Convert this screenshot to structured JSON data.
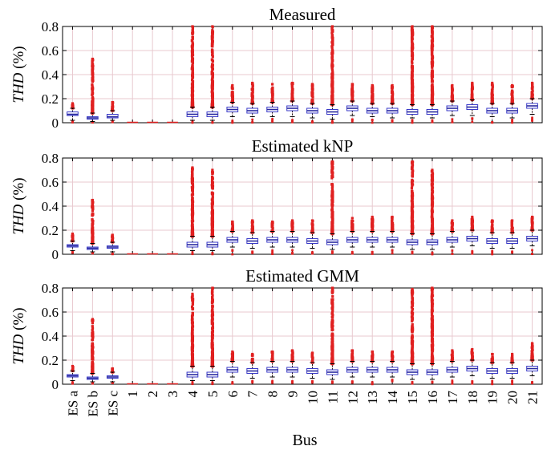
{
  "chart_data": [
    {
      "type": "box",
      "title": "Measured",
      "ylabel_var": "THD",
      "ylabel_unit": " (%)",
      "ylim": [
        0,
        0.8
      ],
      "yticks": [
        "0",
        "0.2",
        "0.4",
        "0.6",
        "0.8"
      ],
      "grid": true,
      "categories": [
        "ES a",
        "ES b",
        "ES c",
        "1",
        "2",
        "3",
        "4",
        "5",
        "6",
        "7",
        "8",
        "9",
        "10",
        "11",
        "12",
        "13",
        "14",
        "15",
        "16",
        "17",
        "18",
        "19",
        "20",
        "21"
      ],
      "median": [
        0.07,
        0.04,
        0.05,
        0,
        0,
        0,
        0.07,
        0.07,
        0.11,
        0.1,
        0.11,
        0.12,
        0.1,
        0.09,
        0.12,
        0.1,
        0.1,
        0.09,
        0.09,
        0.12,
        0.13,
        0.1,
        0.1,
        0.14
      ],
      "q1": [
        0.06,
        0.03,
        0.04,
        0,
        0,
        0,
        0.05,
        0.05,
        0.09,
        0.08,
        0.09,
        0.1,
        0.08,
        0.07,
        0.1,
        0.08,
        0.08,
        0.07,
        0.07,
        0.1,
        0.11,
        0.08,
        0.08,
        0.12
      ],
      "q3": [
        0.09,
        0.05,
        0.07,
        0,
        0,
        0,
        0.09,
        0.09,
        0.13,
        0.12,
        0.13,
        0.14,
        0.12,
        0.11,
        0.14,
        0.12,
        0.12,
        0.11,
        0.11,
        0.14,
        0.15,
        0.12,
        0.12,
        0.16
      ],
      "whisker_low": [
        0.02,
        0.01,
        0.02,
        0,
        0,
        0,
        0.02,
        0.02,
        0.05,
        0.05,
        0.05,
        0.05,
        0.04,
        0.03,
        0.06,
        0.05,
        0.04,
        0.04,
        0.04,
        0.06,
        0.06,
        0.05,
        0.04,
        0.07
      ],
      "whisker_high": [
        0.12,
        0.08,
        0.1,
        0,
        0,
        0,
        0.13,
        0.13,
        0.17,
        0.16,
        0.17,
        0.18,
        0.16,
        0.15,
        0.18,
        0.16,
        0.16,
        0.15,
        0.15,
        0.18,
        0.19,
        0.16,
        0.16,
        0.2
      ],
      "outlier_max": [
        0.16,
        0.53,
        0.17,
        0,
        0,
        0,
        0.8,
        0.8,
        0.31,
        0.33,
        0.32,
        0.33,
        0.32,
        0.8,
        0.32,
        0.31,
        0.31,
        0.8,
        0.8,
        0.31,
        0.33,
        0.33,
        0.31,
        0.33
      ]
    },
    {
      "type": "box",
      "title": "Estimated kNP",
      "ylabel_var": "THD",
      "ylabel_unit": " (%)",
      "ylim": [
        0,
        0.8
      ],
      "yticks": [
        "0",
        "0.2",
        "0.4",
        "0.6",
        "0.8"
      ],
      "grid": true,
      "categories": [
        "ES a",
        "ES b",
        "ES c",
        "1",
        "2",
        "3",
        "4",
        "5",
        "6",
        "7",
        "8",
        "9",
        "10",
        "11",
        "12",
        "13",
        "14",
        "15",
        "16",
        "17",
        "18",
        "19",
        "20",
        "21"
      ],
      "median": [
        0.07,
        0.05,
        0.06,
        0,
        0,
        0,
        0.08,
        0.08,
        0.12,
        0.11,
        0.12,
        0.12,
        0.11,
        0.1,
        0.12,
        0.12,
        0.12,
        0.1,
        0.1,
        0.12,
        0.13,
        0.11,
        0.11,
        0.13
      ],
      "q1": [
        0.06,
        0.04,
        0.05,
        0,
        0,
        0,
        0.06,
        0.06,
        0.1,
        0.09,
        0.1,
        0.1,
        0.09,
        0.08,
        0.1,
        0.1,
        0.1,
        0.08,
        0.08,
        0.1,
        0.11,
        0.09,
        0.09,
        0.11
      ],
      "q3": [
        0.08,
        0.06,
        0.07,
        0,
        0,
        0,
        0.1,
        0.1,
        0.14,
        0.13,
        0.14,
        0.14,
        0.13,
        0.12,
        0.14,
        0.14,
        0.14,
        0.12,
        0.12,
        0.14,
        0.15,
        0.13,
        0.13,
        0.15
      ],
      "whisker_low": [
        0.03,
        0.02,
        0.02,
        0,
        0,
        0,
        0.03,
        0.03,
        0.06,
        0.05,
        0.06,
        0.06,
        0.05,
        0.04,
        0.06,
        0.06,
        0.06,
        0.04,
        0.04,
        0.06,
        0.07,
        0.05,
        0.05,
        0.07
      ],
      "whisker_high": [
        0.11,
        0.09,
        0.1,
        0,
        0,
        0,
        0.15,
        0.15,
        0.19,
        0.18,
        0.19,
        0.19,
        0.18,
        0.17,
        0.19,
        0.19,
        0.19,
        0.17,
        0.17,
        0.19,
        0.2,
        0.18,
        0.18,
        0.2
      ],
      "outlier_max": [
        0.17,
        0.45,
        0.16,
        0,
        0,
        0,
        0.72,
        0.7,
        0.27,
        0.28,
        0.27,
        0.28,
        0.28,
        0.77,
        0.3,
        0.31,
        0.31,
        0.77,
        0.7,
        0.28,
        0.31,
        0.28,
        0.28,
        0.31
      ]
    },
    {
      "type": "box",
      "title": "Estimated GMM",
      "ylabel_var": "THD",
      "ylabel_unit": " (%)",
      "ylim": [
        0,
        0.8
      ],
      "yticks": [
        "0",
        "0.2",
        "0.4",
        "0.6",
        "0.8"
      ],
      "grid": true,
      "categories": [
        "ES a",
        "ES b",
        "ES c",
        "1",
        "2",
        "3",
        "4",
        "5",
        "6",
        "7",
        "8",
        "9",
        "10",
        "11",
        "12",
        "13",
        "14",
        "15",
        "16",
        "17",
        "18",
        "19",
        "20",
        "21"
      ],
      "median": [
        0.07,
        0.05,
        0.06,
        0,
        0,
        0,
        0.08,
        0.08,
        0.12,
        0.11,
        0.12,
        0.12,
        0.11,
        0.1,
        0.12,
        0.12,
        0.12,
        0.1,
        0.1,
        0.12,
        0.13,
        0.11,
        0.11,
        0.13
      ],
      "q1": [
        0.06,
        0.04,
        0.05,
        0,
        0,
        0,
        0.06,
        0.06,
        0.1,
        0.09,
        0.1,
        0.1,
        0.09,
        0.08,
        0.1,
        0.1,
        0.1,
        0.08,
        0.08,
        0.1,
        0.11,
        0.09,
        0.09,
        0.11
      ],
      "q3": [
        0.08,
        0.06,
        0.07,
        0,
        0,
        0,
        0.1,
        0.1,
        0.14,
        0.13,
        0.14,
        0.14,
        0.13,
        0.12,
        0.14,
        0.14,
        0.14,
        0.12,
        0.12,
        0.14,
        0.15,
        0.13,
        0.13,
        0.15
      ],
      "whisker_low": [
        0.03,
        0.02,
        0.02,
        0,
        0,
        0,
        0.03,
        0.03,
        0.06,
        0.05,
        0.06,
        0.06,
        0.05,
        0.04,
        0.06,
        0.06,
        0.06,
        0.04,
        0.04,
        0.06,
        0.07,
        0.05,
        0.05,
        0.07
      ],
      "whisker_high": [
        0.11,
        0.09,
        0.1,
        0,
        0,
        0,
        0.15,
        0.15,
        0.19,
        0.18,
        0.19,
        0.19,
        0.18,
        0.17,
        0.19,
        0.19,
        0.19,
        0.17,
        0.17,
        0.19,
        0.2,
        0.18,
        0.18,
        0.2
      ],
      "outlier_max": [
        0.15,
        0.54,
        0.13,
        0,
        0,
        0,
        0.75,
        0.8,
        0.27,
        0.25,
        0.27,
        0.28,
        0.26,
        0.8,
        0.28,
        0.27,
        0.27,
        0.79,
        0.8,
        0.28,
        0.29,
        0.25,
        0.25,
        0.34
      ]
    }
  ],
  "xlabel": "Bus",
  "colors": {
    "box_edge": "#3a3ac8",
    "median": "#2a2aa0",
    "outlier": "#e02020",
    "grid": "#e8c9cf"
  }
}
